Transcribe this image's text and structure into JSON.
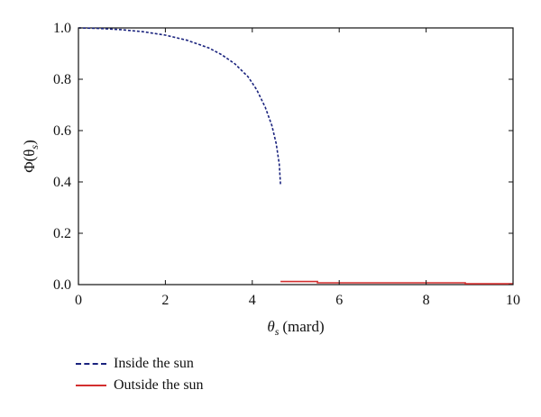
{
  "chart_data": {
    "type": "line",
    "xlabel": "(mard)",
    "xlabel_symbol": "θ",
    "xlabel_subscript": "s",
    "ylabel": "Φ(θ",
    "ylabel_subscript": "s",
    "ylabel_close": ")",
    "xlim": [
      0,
      10
    ],
    "ylim": [
      0,
      1.0
    ],
    "x_ticks": [
      "0",
      "2",
      "4",
      "6",
      "8",
      "10"
    ],
    "y_ticks": [
      "0.0",
      "0.2",
      "0.4",
      "0.6",
      "0.8",
      "1.0"
    ],
    "grid": false,
    "legend_position": "below",
    "series": [
      {
        "name": "Inside the sun",
        "color": "#1a237e",
        "style": "dashed",
        "x": [
          0,
          0.5,
          1.0,
          1.5,
          2.0,
          2.5,
          3.0,
          3.3,
          3.6,
          3.9,
          4.1,
          4.3,
          4.45,
          4.55,
          4.62,
          4.65
        ],
        "y": [
          1.0,
          0.998,
          0.993,
          0.985,
          0.972,
          0.952,
          0.922,
          0.895,
          0.86,
          0.81,
          0.76,
          0.69,
          0.62,
          0.55,
          0.47,
          0.39
        ]
      },
      {
        "name": "Outside the sun",
        "color": "#d32f2f",
        "style": "solid",
        "x": [
          4.65,
          5.5,
          5.5,
          8.9,
          8.9,
          10.0
        ],
        "y": [
          0.012,
          0.012,
          0.007,
          0.007,
          0.003,
          0.003
        ]
      }
    ]
  }
}
